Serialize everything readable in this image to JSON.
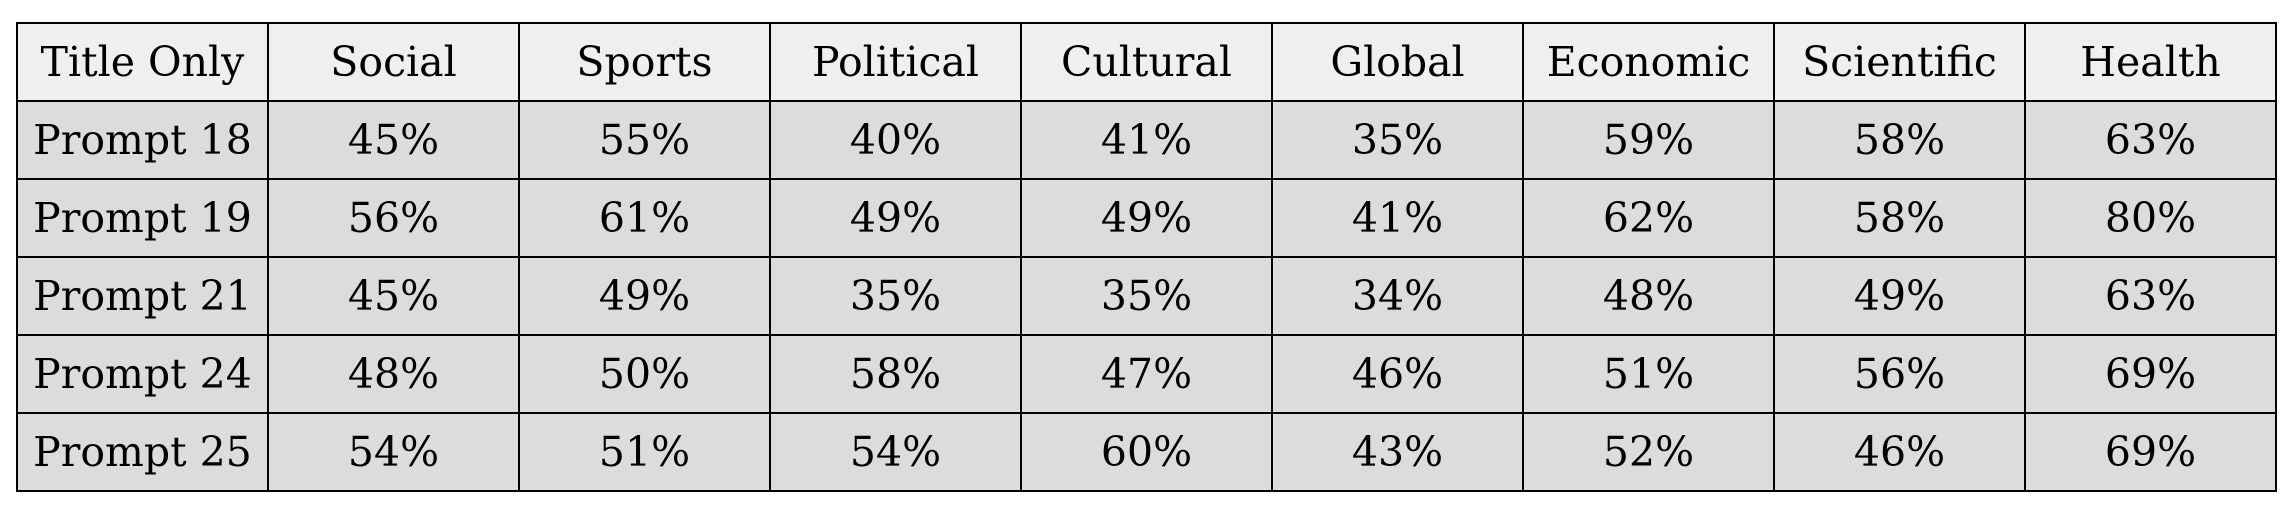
{
  "table": {
    "header": [
      "Title Only",
      "Social",
      "Sports",
      "Political",
      "Cultural",
      "Global",
      "Economic",
      "Scientific",
      "Health"
    ],
    "rows": [
      {
        "label": "Prompt 18",
        "values": [
          "45%",
          "55%",
          "40%",
          "41%",
          "35%",
          "59%",
          "58%",
          "63%"
        ]
      },
      {
        "label": "Prompt 19",
        "values": [
          "56%",
          "61%",
          "49%",
          "49%",
          "41%",
          "62%",
          "58%",
          "80%"
        ]
      },
      {
        "label": "Prompt 21",
        "values": [
          "45%",
          "49%",
          "35%",
          "35%",
          "34%",
          "48%",
          "49%",
          "63%"
        ]
      },
      {
        "label": "Prompt 24",
        "values": [
          "48%",
          "50%",
          "58%",
          "47%",
          "46%",
          "51%",
          "56%",
          "69%"
        ]
      },
      {
        "label": "Prompt 25",
        "values": [
          "54%",
          "51%",
          "54%",
          "60%",
          "43%",
          "52%",
          "46%",
          "69%"
        ]
      }
    ]
  }
}
